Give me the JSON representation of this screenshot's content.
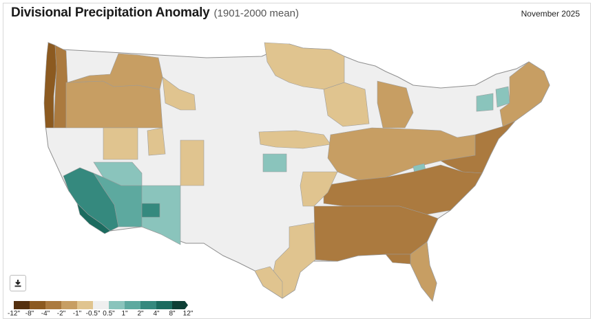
{
  "header": {
    "title": "Divisional Precipitation Anomaly",
    "subtitle": "(1901-2000 mean)",
    "date": "November 2025"
  },
  "download": {
    "icon": "download-icon"
  },
  "legend": {
    "colors": [
      "#54300f",
      "#8c5a20",
      "#ab7a3f",
      "#c79e63",
      "#e0c48f",
      "#efefef",
      "#8ac4bc",
      "#5da99f",
      "#35897e",
      "#1b6b5f",
      "#0e3f36"
    ],
    "labels": [
      "-12\"",
      "-8\"",
      "-4\"",
      "-2\"",
      "-1\"",
      "-0.5\"",
      "0.5\"",
      "1\"",
      "2\"",
      "4\"",
      "8\"",
      "12\""
    ]
  },
  "map_colors": {
    "land": "#efefef",
    "border": "#9b9b9b"
  }
}
